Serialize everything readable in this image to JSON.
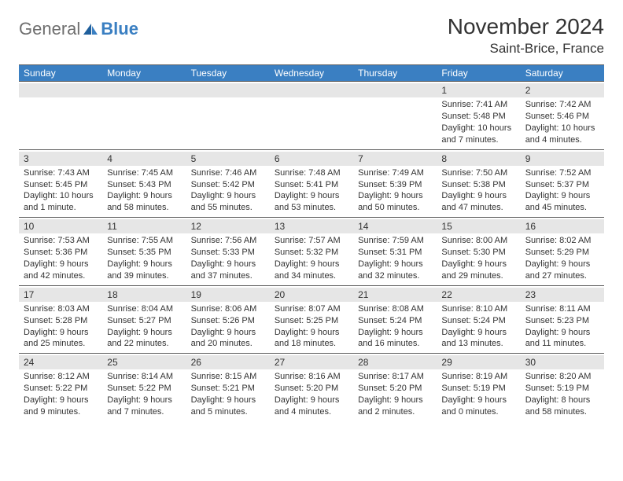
{
  "logo": {
    "general": "General",
    "blue": "Blue"
  },
  "title": {
    "month": "November 2024",
    "location": "Saint-Brice, France"
  },
  "colors": {
    "accent": "#3a7fc2",
    "headerText": "#ffffff",
    "body": "#333333",
    "shade": "#e6e6e6",
    "rule": "#5c5c5c"
  },
  "daysOfWeek": [
    "Sunday",
    "Monday",
    "Tuesday",
    "Wednesday",
    "Thursday",
    "Friday",
    "Saturday"
  ],
  "weeks": [
    [
      null,
      null,
      null,
      null,
      null,
      {
        "n": "1",
        "sr": "Sunrise: 7:41 AM",
        "ss": "Sunset: 5:48 PM",
        "dl1": "Daylight: 10 hours",
        "dl2": "and 7 minutes."
      },
      {
        "n": "2",
        "sr": "Sunrise: 7:42 AM",
        "ss": "Sunset: 5:46 PM",
        "dl1": "Daylight: 10 hours",
        "dl2": "and 4 minutes."
      }
    ],
    [
      {
        "n": "3",
        "sr": "Sunrise: 7:43 AM",
        "ss": "Sunset: 5:45 PM",
        "dl1": "Daylight: 10 hours",
        "dl2": "and 1 minute."
      },
      {
        "n": "4",
        "sr": "Sunrise: 7:45 AM",
        "ss": "Sunset: 5:43 PM",
        "dl1": "Daylight: 9 hours",
        "dl2": "and 58 minutes."
      },
      {
        "n": "5",
        "sr": "Sunrise: 7:46 AM",
        "ss": "Sunset: 5:42 PM",
        "dl1": "Daylight: 9 hours",
        "dl2": "and 55 minutes."
      },
      {
        "n": "6",
        "sr": "Sunrise: 7:48 AM",
        "ss": "Sunset: 5:41 PM",
        "dl1": "Daylight: 9 hours",
        "dl2": "and 53 minutes."
      },
      {
        "n": "7",
        "sr": "Sunrise: 7:49 AM",
        "ss": "Sunset: 5:39 PM",
        "dl1": "Daylight: 9 hours",
        "dl2": "and 50 minutes."
      },
      {
        "n": "8",
        "sr": "Sunrise: 7:50 AM",
        "ss": "Sunset: 5:38 PM",
        "dl1": "Daylight: 9 hours",
        "dl2": "and 47 minutes."
      },
      {
        "n": "9",
        "sr": "Sunrise: 7:52 AM",
        "ss": "Sunset: 5:37 PM",
        "dl1": "Daylight: 9 hours",
        "dl2": "and 45 minutes."
      }
    ],
    [
      {
        "n": "10",
        "sr": "Sunrise: 7:53 AM",
        "ss": "Sunset: 5:36 PM",
        "dl1": "Daylight: 9 hours",
        "dl2": "and 42 minutes."
      },
      {
        "n": "11",
        "sr": "Sunrise: 7:55 AM",
        "ss": "Sunset: 5:35 PM",
        "dl1": "Daylight: 9 hours",
        "dl2": "and 39 minutes."
      },
      {
        "n": "12",
        "sr": "Sunrise: 7:56 AM",
        "ss": "Sunset: 5:33 PM",
        "dl1": "Daylight: 9 hours",
        "dl2": "and 37 minutes."
      },
      {
        "n": "13",
        "sr": "Sunrise: 7:57 AM",
        "ss": "Sunset: 5:32 PM",
        "dl1": "Daylight: 9 hours",
        "dl2": "and 34 minutes."
      },
      {
        "n": "14",
        "sr": "Sunrise: 7:59 AM",
        "ss": "Sunset: 5:31 PM",
        "dl1": "Daylight: 9 hours",
        "dl2": "and 32 minutes."
      },
      {
        "n": "15",
        "sr": "Sunrise: 8:00 AM",
        "ss": "Sunset: 5:30 PM",
        "dl1": "Daylight: 9 hours",
        "dl2": "and 29 minutes."
      },
      {
        "n": "16",
        "sr": "Sunrise: 8:02 AM",
        "ss": "Sunset: 5:29 PM",
        "dl1": "Daylight: 9 hours",
        "dl2": "and 27 minutes."
      }
    ],
    [
      {
        "n": "17",
        "sr": "Sunrise: 8:03 AM",
        "ss": "Sunset: 5:28 PM",
        "dl1": "Daylight: 9 hours",
        "dl2": "and 25 minutes."
      },
      {
        "n": "18",
        "sr": "Sunrise: 8:04 AM",
        "ss": "Sunset: 5:27 PM",
        "dl1": "Daylight: 9 hours",
        "dl2": "and 22 minutes."
      },
      {
        "n": "19",
        "sr": "Sunrise: 8:06 AM",
        "ss": "Sunset: 5:26 PM",
        "dl1": "Daylight: 9 hours",
        "dl2": "and 20 minutes."
      },
      {
        "n": "20",
        "sr": "Sunrise: 8:07 AM",
        "ss": "Sunset: 5:25 PM",
        "dl1": "Daylight: 9 hours",
        "dl2": "and 18 minutes."
      },
      {
        "n": "21",
        "sr": "Sunrise: 8:08 AM",
        "ss": "Sunset: 5:24 PM",
        "dl1": "Daylight: 9 hours",
        "dl2": "and 16 minutes."
      },
      {
        "n": "22",
        "sr": "Sunrise: 8:10 AM",
        "ss": "Sunset: 5:24 PM",
        "dl1": "Daylight: 9 hours",
        "dl2": "and 13 minutes."
      },
      {
        "n": "23",
        "sr": "Sunrise: 8:11 AM",
        "ss": "Sunset: 5:23 PM",
        "dl1": "Daylight: 9 hours",
        "dl2": "and 11 minutes."
      }
    ],
    [
      {
        "n": "24",
        "sr": "Sunrise: 8:12 AM",
        "ss": "Sunset: 5:22 PM",
        "dl1": "Daylight: 9 hours",
        "dl2": "and 9 minutes."
      },
      {
        "n": "25",
        "sr": "Sunrise: 8:14 AM",
        "ss": "Sunset: 5:22 PM",
        "dl1": "Daylight: 9 hours",
        "dl2": "and 7 minutes."
      },
      {
        "n": "26",
        "sr": "Sunrise: 8:15 AM",
        "ss": "Sunset: 5:21 PM",
        "dl1": "Daylight: 9 hours",
        "dl2": "and 5 minutes."
      },
      {
        "n": "27",
        "sr": "Sunrise: 8:16 AM",
        "ss": "Sunset: 5:20 PM",
        "dl1": "Daylight: 9 hours",
        "dl2": "and 4 minutes."
      },
      {
        "n": "28",
        "sr": "Sunrise: 8:17 AM",
        "ss": "Sunset: 5:20 PM",
        "dl1": "Daylight: 9 hours",
        "dl2": "and 2 minutes."
      },
      {
        "n": "29",
        "sr": "Sunrise: 8:19 AM",
        "ss": "Sunset: 5:19 PM",
        "dl1": "Daylight: 9 hours",
        "dl2": "and 0 minutes."
      },
      {
        "n": "30",
        "sr": "Sunrise: 8:20 AM",
        "ss": "Sunset: 5:19 PM",
        "dl1": "Daylight: 8 hours",
        "dl2": "and 58 minutes."
      }
    ]
  ]
}
